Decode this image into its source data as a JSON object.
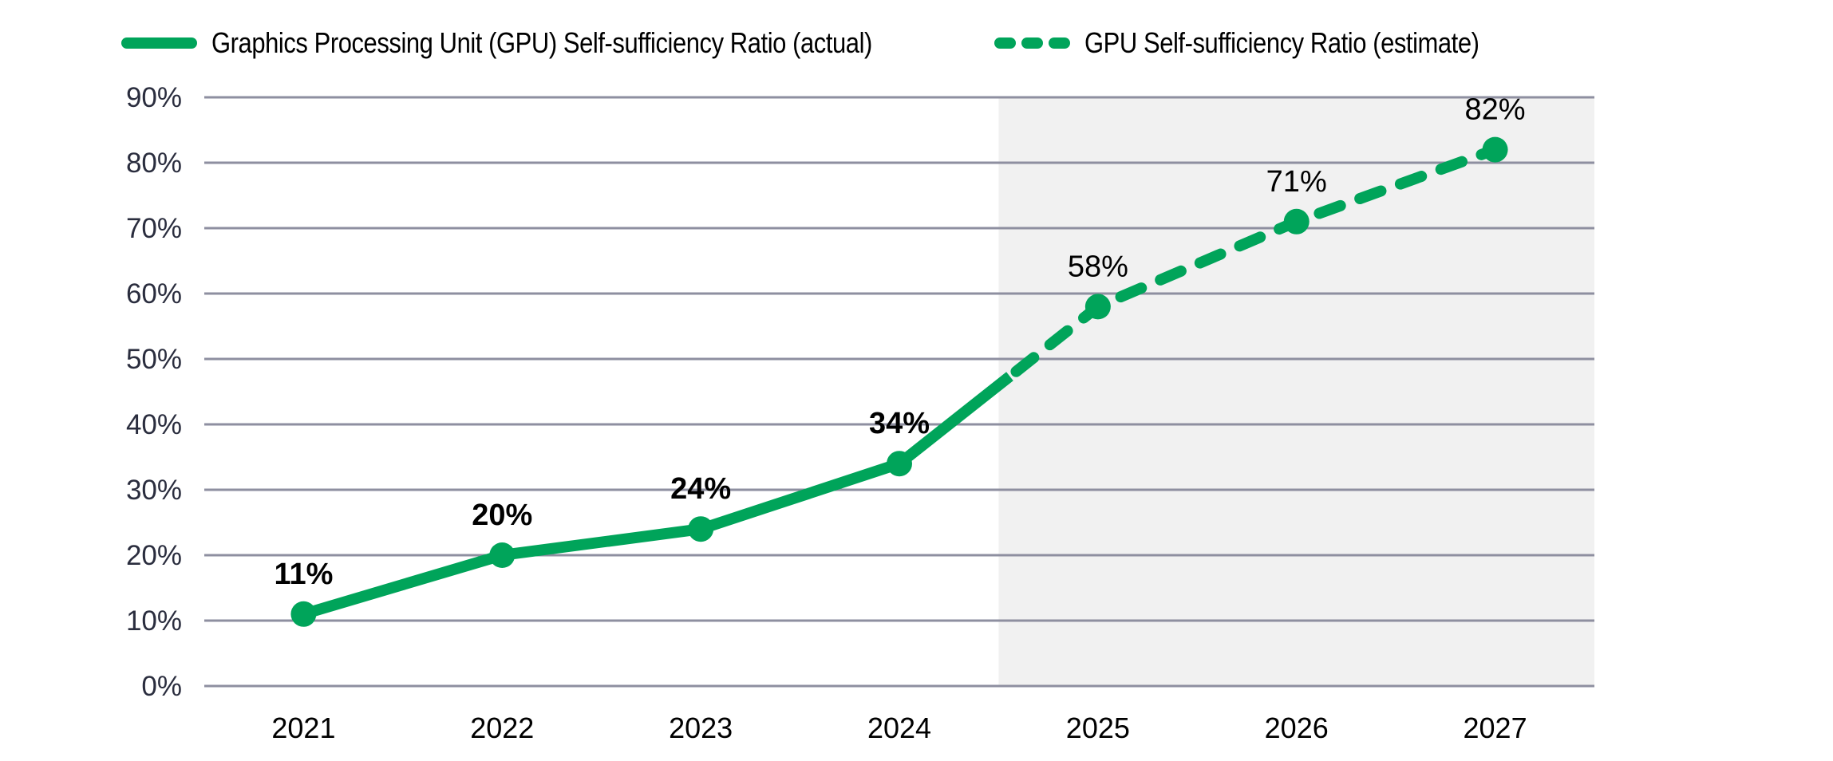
{
  "legend": {
    "items": [
      {
        "label": "Graphics Processing Unit (GPU) Self-sufficiency Ratio (actual)",
        "style": "solid"
      },
      {
        "label": "GPU Self-sufficiency Ratio (estimate)",
        "style": "dashed"
      }
    ]
  },
  "colors": {
    "series": "#00a45a",
    "grid": "#8e8fa0",
    "forecast_shade": "#f1f1f1",
    "ytick_text": "#2a2d3e",
    "label_text": "#000000"
  },
  "chart_data": {
    "type": "line",
    "title": "",
    "xlabel": "",
    "ylabel": "",
    "categories": [
      "2021",
      "2022",
      "2023",
      "2024",
      "2025",
      "2026",
      "2027"
    ],
    "series": [
      {
        "name": "Graphics Processing Unit (GPU) Self-sufficiency Ratio (actual)",
        "style": "solid",
        "x": [
          "2021",
          "2022",
          "2023",
          "2024"
        ],
        "values": [
          11,
          20,
          24,
          34
        ]
      },
      {
        "name": "GPU Self-sufficiency Ratio (estimate)",
        "style": "dashed",
        "x": [
          "2024",
          "2025",
          "2026",
          "2027"
        ],
        "values": [
          34,
          58,
          71,
          82
        ]
      }
    ],
    "data_labels": [
      "11%",
      "20%",
      "24%",
      "34%",
      "58%",
      "71%",
      "82%"
    ],
    "yticks": [
      "0%",
      "10%",
      "20%",
      "30%",
      "40%",
      "50%",
      "60%",
      "70%",
      "80%",
      "90%"
    ],
    "ylim": [
      0,
      90
    ],
    "grid": true,
    "legend_position": "top",
    "shaded_region": {
      "from": "2025",
      "to": "2027",
      "meaning": "forecast"
    }
  }
}
